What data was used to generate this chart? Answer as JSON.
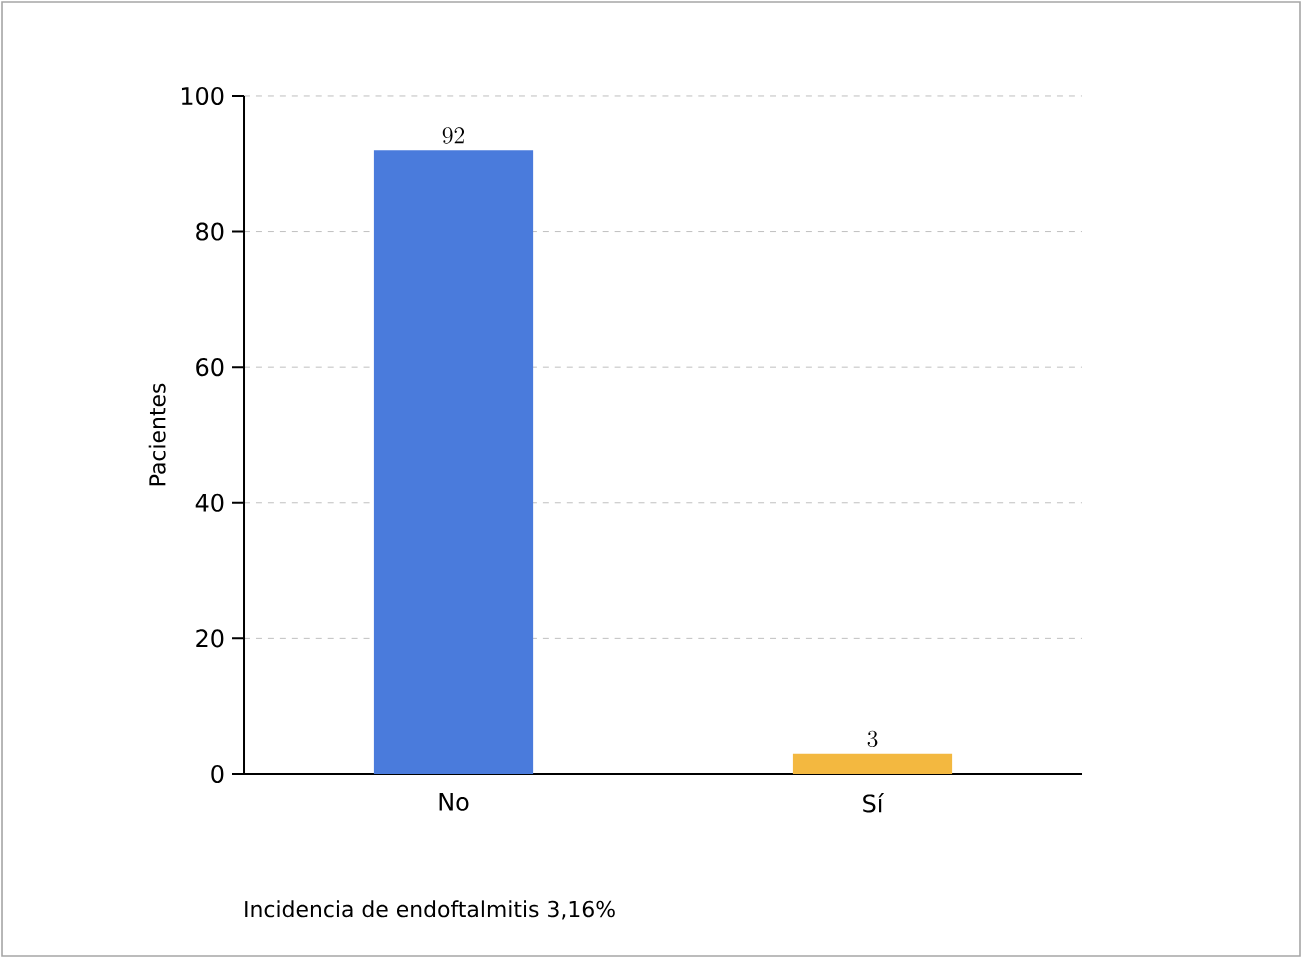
{
  "chart_data": {
    "type": "bar",
    "ylabel": "Pacientes",
    "categories": [
      "No",
      "Sí"
    ],
    "values": [
      92,
      3
    ],
    "colors": [
      "#4a7bdc",
      "#f3b840"
    ],
    "ylim": [
      0,
      100
    ],
    "yticks": [
      0,
      20,
      40,
      60,
      80,
      100
    ],
    "grid": "y",
    "data_labels": true,
    "annotations": [
      "Incidencia de endoftalmitis  3,16%"
    ]
  }
}
